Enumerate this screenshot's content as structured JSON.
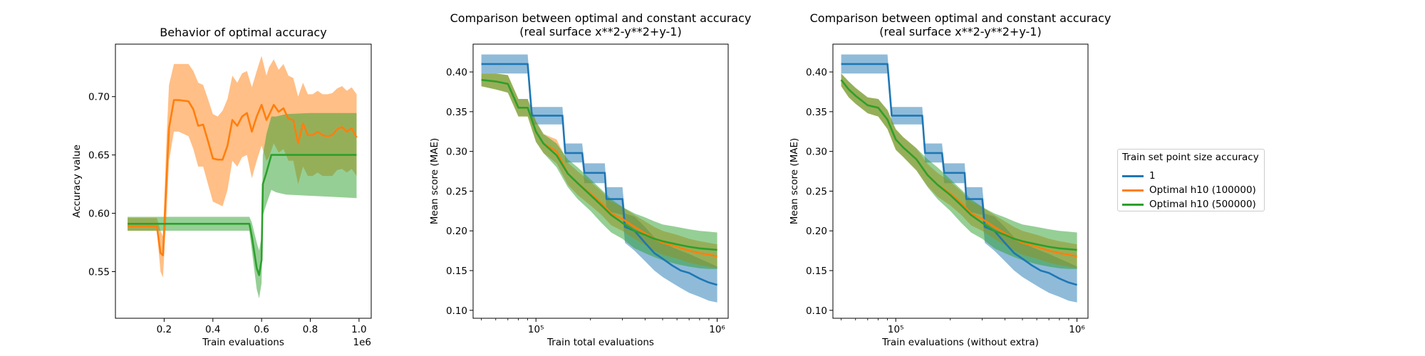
{
  "colors": {
    "c1": "#1f77b4",
    "c2": "#ff7f0e",
    "c3": "#2ca02c"
  },
  "chart_data": [
    {
      "type": "line",
      "title": "Behavior of optimal accuracy",
      "xlabel": "Train evaluations",
      "ylabel": "Accuracy value",
      "x_offset_text": "1e6",
      "xlim": [
        0,
        1.05
      ],
      "ylim": [
        0.51,
        0.745
      ],
      "xticks": [
        0.2,
        0.4,
        0.6,
        0.8,
        1.0
      ],
      "xtick_labels": [
        "0.2",
        "0.4",
        "0.6",
        "0.8",
        "1.0"
      ],
      "yticks": [
        0.55,
        0.6,
        0.65,
        0.7
      ],
      "ytick_labels": [
        "0.55",
        "0.60",
        "0.65",
        "0.70"
      ],
      "series": [
        {
          "color_key": "c2",
          "x": [
            0.05,
            0.12,
            0.17,
            0.185,
            0.195,
            0.21,
            0.22,
            0.24,
            0.26,
            0.3,
            0.32,
            0.34,
            0.36,
            0.38,
            0.4,
            0.42,
            0.44,
            0.46,
            0.48,
            0.5,
            0.52,
            0.54,
            0.56,
            0.58,
            0.6,
            0.62,
            0.63,
            0.65,
            0.67,
            0.69,
            0.71,
            0.73,
            0.75,
            0.77,
            0.79,
            0.81,
            0.83,
            0.85,
            0.87,
            0.89,
            0.91,
            0.93,
            0.95,
            0.97,
            0.99
          ],
          "y": [
            0.589,
            0.589,
            0.589,
            0.566,
            0.564,
            0.63,
            0.673,
            0.697,
            0.697,
            0.696,
            0.689,
            0.675,
            0.676,
            0.662,
            0.647,
            0.646,
            0.646,
            0.658,
            0.68,
            0.675,
            0.683,
            0.686,
            0.67,
            0.683,
            0.693,
            0.68,
            0.684,
            0.693,
            0.687,
            0.69,
            0.681,
            0.68,
            0.66,
            0.677,
            0.667,
            0.667,
            0.67,
            0.667,
            0.666,
            0.667,
            0.672,
            0.674,
            0.67,
            0.673,
            0.665
          ],
          "lower": [
            0.585,
            0.585,
            0.585,
            0.55,
            0.545,
            0.6,
            0.645,
            0.67,
            0.67,
            0.666,
            0.655,
            0.64,
            0.64,
            0.625,
            0.61,
            0.608,
            0.606,
            0.62,
            0.645,
            0.64,
            0.648,
            0.65,
            0.63,
            0.645,
            0.658,
            0.645,
            0.648,
            0.66,
            0.652,
            0.655,
            0.645,
            0.645,
            0.625,
            0.64,
            0.632,
            0.632,
            0.635,
            0.632,
            0.632,
            0.632,
            0.637,
            0.638,
            0.635,
            0.638,
            0.632
          ],
          "upper": [
            0.596,
            0.596,
            0.596,
            0.585,
            0.58,
            0.665,
            0.71,
            0.728,
            0.728,
            0.728,
            0.722,
            0.712,
            0.71,
            0.698,
            0.685,
            0.683,
            0.688,
            0.698,
            0.718,
            0.712,
            0.72,
            0.722,
            0.708,
            0.722,
            0.735,
            0.718,
            0.725,
            0.732,
            0.723,
            0.728,
            0.718,
            0.716,
            0.7,
            0.712,
            0.702,
            0.702,
            0.705,
            0.702,
            0.702,
            0.703,
            0.707,
            0.709,
            0.705,
            0.708,
            0.702
          ]
        },
        {
          "color_key": "c3",
          "x": [
            0.05,
            0.2,
            0.4,
            0.55,
            0.56,
            0.58,
            0.59,
            0.6,
            0.605,
            0.62,
            0.64,
            0.66,
            0.7,
            0.8,
            0.9,
            0.99
          ],
          "y": [
            0.591,
            0.591,
            0.591,
            0.591,
            0.58,
            0.553,
            0.547,
            0.56,
            0.625,
            0.635,
            0.65,
            0.65,
            0.65,
            0.65,
            0.65,
            0.65
          ],
          "lower": [
            0.585,
            0.585,
            0.585,
            0.585,
            0.568,
            0.535,
            0.527,
            0.54,
            0.598,
            0.608,
            0.62,
            0.618,
            0.616,
            0.615,
            0.614,
            0.613
          ],
          "upper": [
            0.597,
            0.597,
            0.597,
            0.597,
            0.592,
            0.575,
            0.568,
            0.58,
            0.65,
            0.668,
            0.683,
            0.683,
            0.685,
            0.686,
            0.686,
            0.686
          ]
        }
      ]
    },
    {
      "type": "line",
      "title": "Comparison between optimal and constant accuracy",
      "subtitle": "(real surface x**2-y**2+y-1)",
      "xlabel": "Train total evaluations",
      "ylabel": "Mean score (MAE)",
      "xscale": "log",
      "xlim": [
        45000,
        1150000
      ],
      "ylim": [
        0.09,
        0.435
      ],
      "xticks": [
        100000,
        1000000
      ],
      "xtick_labels": [
        "10⁵",
        "10⁶"
      ],
      "yticks": [
        0.1,
        0.15,
        0.2,
        0.25,
        0.3,
        0.35,
        0.4
      ],
      "ytick_labels": [
        "0.10",
        "0.15",
        "0.20",
        "0.25",
        "0.30",
        "0.35",
        "0.40"
      ],
      "series": [
        {
          "color_key": "c1",
          "x": [
            50000,
            60000,
            70000,
            80000,
            90000,
            95000,
            110000,
            140000,
            145000,
            180000,
            185000,
            240000,
            245000,
            300000,
            310000,
            350000,
            400000,
            450000,
            500000,
            560000,
            630000,
            700000,
            800000,
            900000,
            1000000
          ],
          "y": [
            0.41,
            0.41,
            0.41,
            0.41,
            0.41,
            0.345,
            0.345,
            0.345,
            0.298,
            0.298,
            0.273,
            0.273,
            0.24,
            0.24,
            0.205,
            0.2,
            0.185,
            0.172,
            0.165,
            0.157,
            0.15,
            0.147,
            0.14,
            0.135,
            0.132
          ],
          "lower": [
            0.398,
            0.398,
            0.398,
            0.398,
            0.398,
            0.334,
            0.334,
            0.334,
            0.286,
            0.286,
            0.26,
            0.26,
            0.225,
            0.22,
            0.185,
            0.175,
            0.162,
            0.15,
            0.142,
            0.135,
            0.128,
            0.122,
            0.117,
            0.112,
            0.11
          ],
          "upper": [
            0.422,
            0.422,
            0.422,
            0.422,
            0.422,
            0.356,
            0.356,
            0.356,
            0.31,
            0.31,
            0.285,
            0.285,
            0.255,
            0.255,
            0.222,
            0.218,
            0.205,
            0.192,
            0.186,
            0.18,
            0.175,
            0.171,
            0.165,
            0.16,
            0.155
          ]
        },
        {
          "color_key": "c2",
          "x": [
            50000,
            60000,
            70000,
            80000,
            90000,
            100000,
            110000,
            130000,
            150000,
            170000,
            200000,
            230000,
            260000,
            300000,
            350000,
            400000,
            450000,
            500000,
            600000,
            700000,
            800000,
            900000,
            1000000
          ],
          "y": [
            0.39,
            0.388,
            0.385,
            0.355,
            0.355,
            0.325,
            0.31,
            0.3,
            0.272,
            0.26,
            0.247,
            0.235,
            0.222,
            0.215,
            0.205,
            0.197,
            0.19,
            0.185,
            0.18,
            0.175,
            0.172,
            0.17,
            0.168
          ],
          "lower": [
            0.382,
            0.378,
            0.374,
            0.344,
            0.344,
            0.312,
            0.298,
            0.285,
            0.258,
            0.245,
            0.232,
            0.22,
            0.207,
            0.2,
            0.19,
            0.182,
            0.175,
            0.17,
            0.165,
            0.16,
            0.157,
            0.155,
            0.153
          ],
          "upper": [
            0.398,
            0.398,
            0.396,
            0.366,
            0.366,
            0.338,
            0.322,
            0.315,
            0.286,
            0.275,
            0.262,
            0.25,
            0.237,
            0.23,
            0.22,
            0.212,
            0.205,
            0.2,
            0.195,
            0.19,
            0.187,
            0.185,
            0.183
          ]
        },
        {
          "color_key": "c3",
          "x": [
            50000,
            60000,
            70000,
            80000,
            90000,
            100000,
            110000,
            130000,
            150000,
            170000,
            200000,
            230000,
            260000,
            300000,
            350000,
            400000,
            450000,
            500000,
            600000,
            700000,
            800000,
            900000,
            1000000
          ],
          "y": [
            0.39,
            0.388,
            0.385,
            0.355,
            0.355,
            0.325,
            0.31,
            0.295,
            0.272,
            0.26,
            0.245,
            0.232,
            0.22,
            0.21,
            0.2,
            0.195,
            0.19,
            0.187,
            0.183,
            0.18,
            0.178,
            0.177,
            0.176
          ],
          "lower": [
            0.382,
            0.378,
            0.374,
            0.344,
            0.344,
            0.312,
            0.298,
            0.28,
            0.255,
            0.24,
            0.225,
            0.21,
            0.198,
            0.19,
            0.178,
            0.172,
            0.167,
            0.163,
            0.158,
            0.155,
            0.153,
            0.152,
            0.152
          ],
          "upper": [
            0.398,
            0.398,
            0.396,
            0.366,
            0.366,
            0.338,
            0.322,
            0.31,
            0.29,
            0.28,
            0.265,
            0.252,
            0.24,
            0.23,
            0.222,
            0.217,
            0.212,
            0.208,
            0.205,
            0.202,
            0.2,
            0.199,
            0.198
          ]
        }
      ]
    },
    {
      "type": "line",
      "title": "Comparison between optimal and constant accuracy",
      "subtitle": "(real surface x**2-y**2+y-1)",
      "xlabel": "Train evaluations (without extra)",
      "ylabel": "Mean score (MAE)",
      "xscale": "log",
      "xlim": [
        45000,
        1150000
      ],
      "ylim": [
        0.09,
        0.435
      ],
      "xticks": [
        100000,
        1000000
      ],
      "xtick_labels": [
        "10⁵",
        "10⁶"
      ],
      "yticks": [
        0.1,
        0.15,
        0.2,
        0.25,
        0.3,
        0.35,
        0.4
      ],
      "ytick_labels": [
        "0.10",
        "0.15",
        "0.20",
        "0.25",
        "0.30",
        "0.35",
        "0.40"
      ],
      "series": [
        {
          "color_key": "c1",
          "x": [
            50000,
            60000,
            70000,
            80000,
            90000,
            95000,
            110000,
            140000,
            145000,
            180000,
            185000,
            240000,
            245000,
            300000,
            310000,
            350000,
            400000,
            450000,
            500000,
            560000,
            630000,
            700000,
            800000,
            900000,
            1000000
          ],
          "y": [
            0.41,
            0.41,
            0.41,
            0.41,
            0.41,
            0.345,
            0.345,
            0.345,
            0.298,
            0.298,
            0.273,
            0.273,
            0.24,
            0.24,
            0.205,
            0.2,
            0.185,
            0.172,
            0.165,
            0.157,
            0.15,
            0.147,
            0.14,
            0.135,
            0.132
          ],
          "lower": [
            0.398,
            0.398,
            0.398,
            0.398,
            0.398,
            0.334,
            0.334,
            0.334,
            0.286,
            0.286,
            0.26,
            0.26,
            0.225,
            0.22,
            0.185,
            0.175,
            0.162,
            0.15,
            0.142,
            0.135,
            0.128,
            0.122,
            0.117,
            0.112,
            0.11
          ],
          "upper": [
            0.422,
            0.422,
            0.422,
            0.422,
            0.422,
            0.356,
            0.356,
            0.356,
            0.31,
            0.31,
            0.285,
            0.285,
            0.255,
            0.255,
            0.222,
            0.218,
            0.205,
            0.192,
            0.186,
            0.18,
            0.175,
            0.171,
            0.165,
            0.16,
            0.155
          ]
        },
        {
          "color_key": "c2",
          "x": [
            50000,
            55000,
            60000,
            70000,
            80000,
            90000,
            100000,
            110000,
            130000,
            150000,
            170000,
            200000,
            230000,
            260000,
            300000,
            350000,
            400000,
            450000,
            500000,
            600000,
            700000,
            800000,
            900000,
            1000000
          ],
          "y": [
            0.39,
            0.378,
            0.37,
            0.358,
            0.355,
            0.34,
            0.315,
            0.305,
            0.29,
            0.27,
            0.258,
            0.247,
            0.235,
            0.222,
            0.215,
            0.205,
            0.197,
            0.19,
            0.185,
            0.18,
            0.175,
            0.172,
            0.17,
            0.168
          ],
          "lower": [
            0.382,
            0.368,
            0.36,
            0.348,
            0.344,
            0.328,
            0.302,
            0.293,
            0.276,
            0.256,
            0.243,
            0.232,
            0.22,
            0.207,
            0.2,
            0.19,
            0.182,
            0.175,
            0.17,
            0.165,
            0.16,
            0.157,
            0.155,
            0.153
          ],
          "upper": [
            0.398,
            0.388,
            0.38,
            0.368,
            0.366,
            0.352,
            0.328,
            0.318,
            0.304,
            0.284,
            0.273,
            0.262,
            0.25,
            0.237,
            0.23,
            0.22,
            0.212,
            0.205,
            0.2,
            0.195,
            0.19,
            0.187,
            0.185,
            0.183
          ]
        },
        {
          "color_key": "c3",
          "x": [
            50000,
            55000,
            60000,
            70000,
            80000,
            90000,
            100000,
            110000,
            130000,
            150000,
            170000,
            200000,
            230000,
            260000,
            300000,
            350000,
            400000,
            450000,
            500000,
            600000,
            700000,
            800000,
            900000,
            1000000
          ],
          "y": [
            0.39,
            0.378,
            0.37,
            0.358,
            0.355,
            0.34,
            0.315,
            0.305,
            0.29,
            0.27,
            0.258,
            0.245,
            0.232,
            0.22,
            0.21,
            0.2,
            0.195,
            0.19,
            0.187,
            0.183,
            0.18,
            0.178,
            0.177,
            0.176
          ],
          "lower": [
            0.382,
            0.368,
            0.36,
            0.348,
            0.344,
            0.328,
            0.302,
            0.293,
            0.276,
            0.255,
            0.24,
            0.225,
            0.21,
            0.198,
            0.19,
            0.178,
            0.172,
            0.167,
            0.163,
            0.158,
            0.155,
            0.153,
            0.152,
            0.152
          ],
          "upper": [
            0.398,
            0.388,
            0.38,
            0.368,
            0.366,
            0.352,
            0.328,
            0.318,
            0.304,
            0.29,
            0.28,
            0.265,
            0.252,
            0.24,
            0.23,
            0.222,
            0.217,
            0.212,
            0.208,
            0.205,
            0.202,
            0.2,
            0.199,
            0.198
          ]
        }
      ]
    }
  ],
  "legend": {
    "title": "Train set point size accuracy",
    "items": [
      {
        "label": "1",
        "color_key": "c1"
      },
      {
        "label": "Optimal h10 (100000)",
        "color_key": "c2"
      },
      {
        "label": "Optimal h10 (500000)",
        "color_key": "c3"
      }
    ]
  }
}
